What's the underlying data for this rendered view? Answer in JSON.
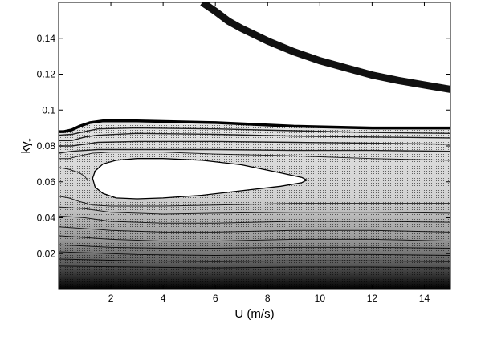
{
  "chart_data": {
    "type": "contour",
    "xlabel": "U (m/s)",
    "ylabel_main": "kγ",
    "ylabel_sub": "*",
    "xlim": [
      0,
      15
    ],
    "ylim": [
      0,
      0.16
    ],
    "xticks": [
      2,
      4,
      6,
      8,
      10,
      12,
      14
    ],
    "xtick_labels": [
      "2",
      "4",
      "6",
      "8",
      "10",
      "12",
      "14"
    ],
    "yticks": [
      0.02,
      0.04,
      0.06,
      0.08,
      0.1,
      0.12,
      0.14
    ],
    "ytick_labels": [
      "0.02",
      "0.04",
      "0.06",
      "0.08",
      "0.1",
      "0.12",
      "0.14"
    ],
    "grid": false,
    "regions": {
      "dense_band": {
        "top_edge": {
          "x": [
            0,
            0.2,
            0.5,
            0.8,
            1.2,
            1.7,
            3,
            6,
            9,
            12,
            15
          ],
          "y": [
            0.088,
            0.088,
            0.089,
            0.091,
            0.093,
            0.094,
            0.094,
            0.093,
            0.091,
            0.09,
            0.09
          ]
        },
        "shading_top_color": "#e4e4e4",
        "shading_bottom_color": "#000000"
      },
      "closed_region": {
        "x": [
          1.3,
          1.4,
          1.7,
          2.2,
          3,
          4,
          5.5,
          7,
          8.5,
          9.3,
          9.5,
          9.3,
          8.5,
          7,
          5.5,
          4,
          3,
          2.2,
          1.7,
          1.4,
          1.3
        ],
        "y": [
          0.062,
          0.066,
          0.07,
          0.072,
          0.073,
          0.073,
          0.072,
          0.0695,
          0.065,
          0.0625,
          0.061,
          0.0595,
          0.0575,
          0.055,
          0.0525,
          0.051,
          0.0505,
          0.051,
          0.0535,
          0.057,
          0.062
        ]
      },
      "band_contours": [
        {
          "x": [
            0,
            0.5,
            1,
            1.5,
            3,
            6,
            9,
            12,
            15
          ],
          "y": [
            0.086,
            0.0865,
            0.088,
            0.0895,
            0.09,
            0.0895,
            0.0885,
            0.0875,
            0.087
          ]
        },
        {
          "x": [
            0,
            0.5,
            1,
            1.5,
            3,
            6,
            9,
            12,
            15
          ],
          "y": [
            0.083,
            0.083,
            0.085,
            0.086,
            0.087,
            0.0865,
            0.0855,
            0.085,
            0.0845
          ]
        },
        {
          "x": [
            0,
            0.5,
            1,
            1.5,
            3,
            6,
            9,
            12,
            15
          ],
          "y": [
            0.08,
            0.08,
            0.081,
            0.082,
            0.0825,
            0.0825,
            0.082,
            0.0815,
            0.081
          ]
        },
        {
          "x": [
            0,
            0.5,
            1,
            1.5,
            3,
            6,
            9,
            12,
            15
          ],
          "y": [
            0.076,
            0.077,
            0.0775,
            0.078,
            0.078,
            0.078,
            0.0775,
            0.0775,
            0.077
          ]
        },
        {
          "x": [
            0,
            0.4,
            0.8,
            1.3,
            2,
            4,
            6,
            9,
            12,
            15
          ],
          "y": [
            0.073,
            0.073,
            0.0745,
            0.076,
            0.0765,
            0.0765,
            0.0755,
            0.0745,
            0.073,
            0.072
          ]
        },
        {
          "x": [
            0,
            0.4,
            0.8,
            1.0,
            1.1
          ],
          "y": [
            0.068,
            0.067,
            0.065,
            0.063,
            0.061
          ]
        },
        {
          "x": [
            0,
            0.4,
            0.8,
            1.3,
            2,
            4,
            6,
            9,
            12,
            15
          ],
          "y": [
            0.052,
            0.051,
            0.049,
            0.047,
            0.0465,
            0.0465,
            0.047,
            0.048,
            0.048,
            0.048
          ]
        },
        {
          "x": [
            0,
            1,
            2,
            4,
            6,
            9,
            12,
            15
          ],
          "y": [
            0.046,
            0.045,
            0.043,
            0.042,
            0.0425,
            0.043,
            0.043,
            0.0425
          ]
        },
        {
          "x": [
            0,
            1,
            2,
            4,
            6,
            9,
            12,
            15
          ],
          "y": [
            0.041,
            0.04,
            0.038,
            0.037,
            0.037,
            0.038,
            0.038,
            0.0375
          ]
        },
        {
          "x": [
            0,
            2,
            4,
            6,
            9,
            12,
            15
          ],
          "y": [
            0.035,
            0.033,
            0.032,
            0.032,
            0.033,
            0.033,
            0.032
          ]
        },
        {
          "x": [
            0,
            2,
            4,
            6,
            9,
            12,
            15
          ],
          "y": [
            0.03,
            0.028,
            0.027,
            0.027,
            0.028,
            0.028,
            0.027
          ]
        },
        {
          "x": [
            0,
            2,
            4,
            6,
            9,
            12,
            15
          ],
          "y": [
            0.025,
            0.0235,
            0.023,
            0.023,
            0.0235,
            0.0235,
            0.023
          ]
        },
        {
          "x": [
            0,
            3,
            6,
            9,
            12,
            15
          ],
          "y": [
            0.021,
            0.0195,
            0.019,
            0.0195,
            0.0195,
            0.019
          ]
        },
        {
          "x": [
            0,
            3,
            6,
            9,
            12,
            15
          ],
          "y": [
            0.017,
            0.016,
            0.0155,
            0.016,
            0.016,
            0.0155
          ]
        },
        {
          "x": [
            0,
            3,
            6,
            9,
            12,
            15
          ],
          "y": [
            0.013,
            0.0125,
            0.012,
            0.0125,
            0.0125,
            0.012
          ]
        }
      ],
      "upper_curve": {
        "x": [
          5.5,
          6.0,
          6.5,
          7,
          8,
          9,
          10,
          11,
          12,
          13,
          14,
          15
        ],
        "y": [
          0.16,
          0.155,
          0.1495,
          0.1455,
          0.1385,
          0.1325,
          0.1275,
          0.1235,
          0.1195,
          0.1165,
          0.114,
          0.1115
        ],
        "thickness": 0.004
      }
    }
  }
}
